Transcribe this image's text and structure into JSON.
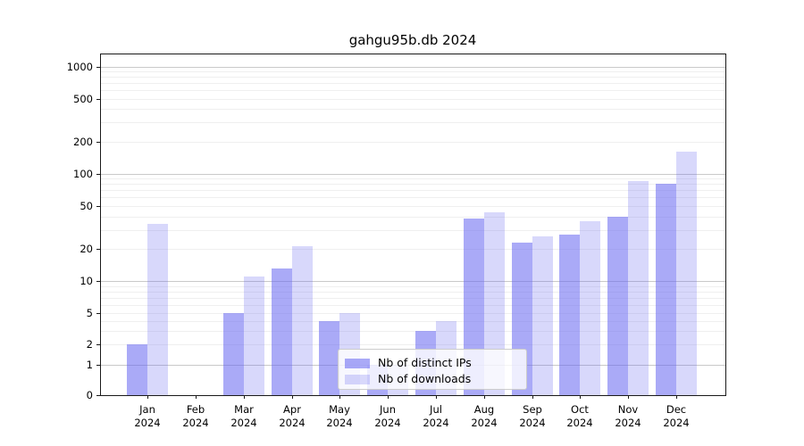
{
  "chart_data": {
    "type": "bar",
    "title": "gahgu95b.db 2024",
    "scale": "symlog",
    "grid": true,
    "legend_position": "bottom-center",
    "categories": [
      "Jan",
      "Feb",
      "Mar",
      "Apr",
      "May",
      "Jun",
      "Jul",
      "Aug",
      "Sep",
      "Oct",
      "Nov",
      "Dec"
    ],
    "category_year": "2024",
    "series": [
      {
        "name": "Nb of distinct IPs",
        "values": [
          2,
          0,
          5,
          13,
          4,
          1,
          3,
          38,
          23,
          27,
          40,
          80
        ]
      },
      {
        "name": "Nb of downloads",
        "values": [
          34,
          0,
          11,
          21,
          5,
          1,
          4,
          44,
          26,
          36,
          85,
          160
        ]
      }
    ],
    "y_ticks": [
      0,
      1,
      2,
      5,
      10,
      20,
      50,
      100,
      200,
      500,
      1000
    ],
    "y_tick_labels": [
      "0",
      "1",
      "2",
      "5",
      "10",
      "20",
      "50",
      "100",
      "200",
      "500",
      "1000"
    ],
    "ylim": [
      0,
      1400
    ]
  },
  "colors": {
    "bar_distinct_ips": "rgba(100,100,240,0.55)",
    "bar_downloads": "rgba(100,100,240,0.25)",
    "bar_base": "#6464f0",
    "grid_major": "#c9c9c9",
    "grid_minor": "#efefef",
    "axis": "#1a1a1a",
    "legend_bg": "#ffffff"
  }
}
